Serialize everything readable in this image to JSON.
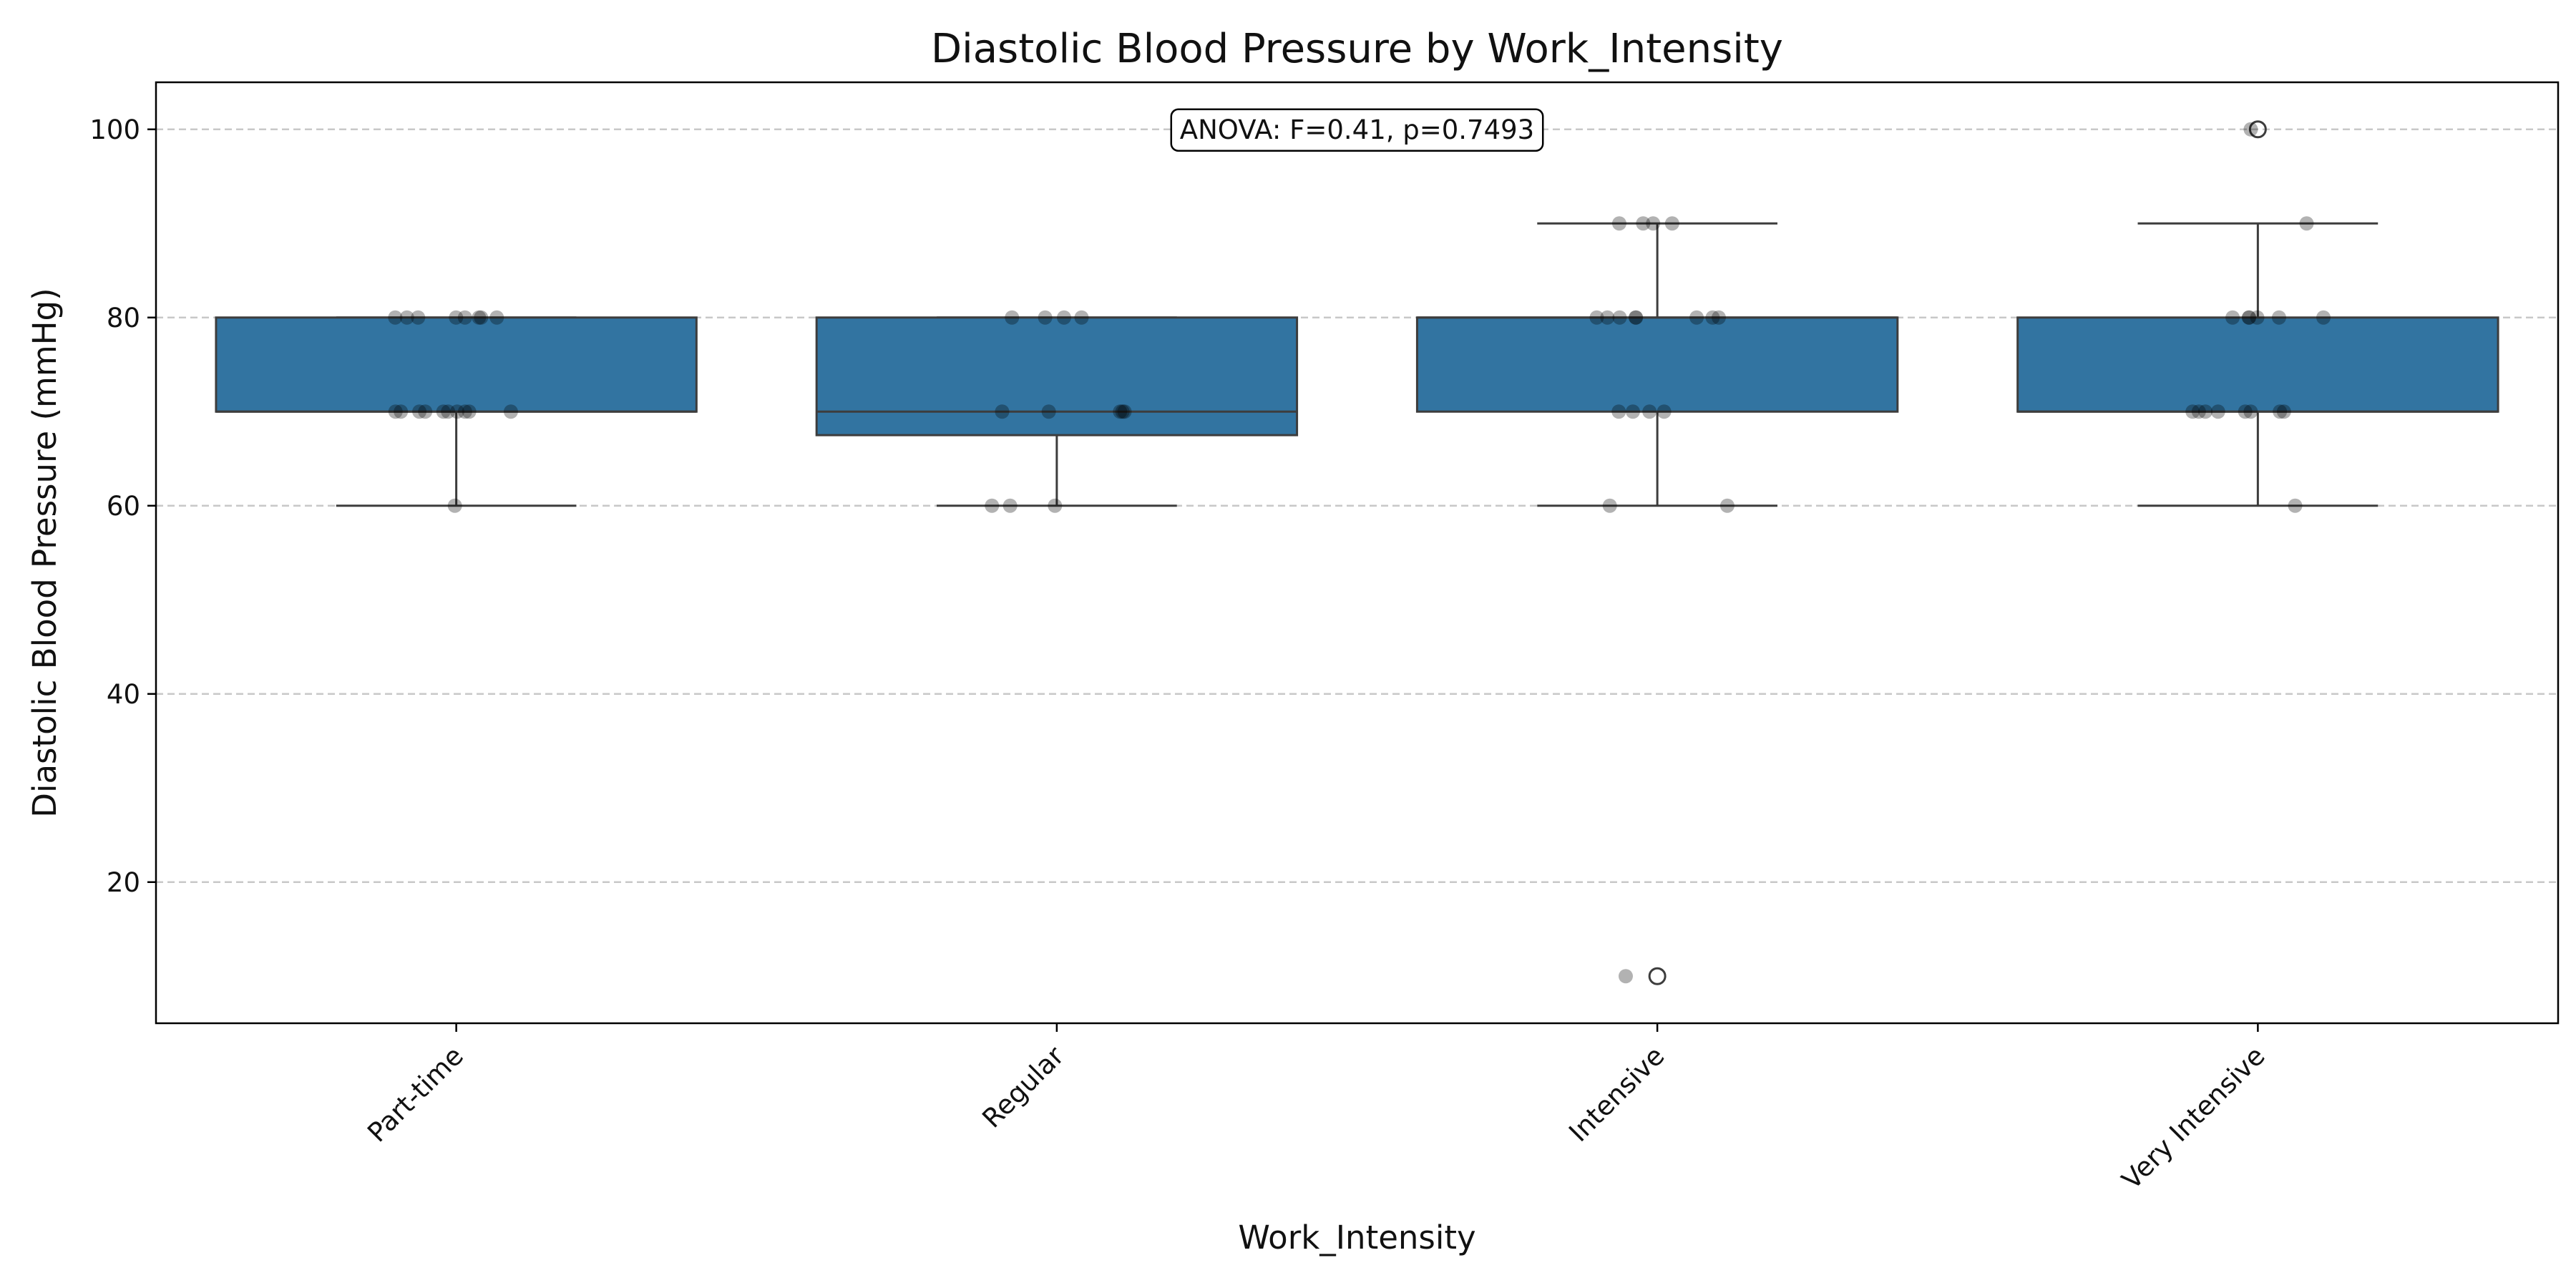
{
  "chart_data": {
    "type": "box",
    "title": "Diastolic Blood Pressure by Work_Intensity",
    "xlabel": "Work_Intensity",
    "ylabel": "Diastolic Blood Pressure (mmHg)",
    "ylim": [
      5,
      105
    ],
    "yticks": [
      20,
      40,
      60,
      80,
      100
    ],
    "grid": "y",
    "annotation": "ANOVA: F=0.41, p=0.7493",
    "colors": {
      "box": "#3274a1",
      "edge": "#3d3d3d",
      "points": "#000000",
      "grid": "#c8c8c8"
    },
    "categories": [
      "Part-time",
      "Regular",
      "Intensive",
      "Very Intensive"
    ],
    "boxes": [
      {
        "q1": 70,
        "median": 70,
        "q3": 80,
        "whisker_low": 60,
        "whisker_high": 80,
        "outliers": []
      },
      {
        "q1": 67.5,
        "median": 70,
        "q3": 80,
        "whisker_low": 60,
        "whisker_high": 80,
        "outliers": []
      },
      {
        "q1": 70,
        "median": 80,
        "q3": 80,
        "whisker_low": 60,
        "whisker_high": 90,
        "outliers": [
          10
        ]
      },
      {
        "q1": 70,
        "median": 70,
        "q3": 80,
        "whisker_low": 60,
        "whisker_high": 90,
        "outliers": [
          100
        ]
      }
    ],
    "points": [
      [
        60,
        70,
        70,
        70,
        70,
        70,
        70,
        70,
        70,
        70,
        70,
        80,
        80,
        80,
        80,
        80,
        80,
        80,
        80
      ],
      [
        60,
        60,
        60,
        70,
        70,
        70,
        70,
        70,
        80,
        80,
        80,
        80
      ],
      [
        10,
        60,
        60,
        70,
        70,
        70,
        70,
        80,
        80,
        80,
        80,
        80,
        80,
        80,
        80,
        90,
        90,
        90,
        90
      ],
      [
        60,
        70,
        70,
        70,
        70,
        70,
        70,
        70,
        70,
        80,
        80,
        80,
        80,
        80,
        80,
        90,
        100
      ]
    ]
  }
}
